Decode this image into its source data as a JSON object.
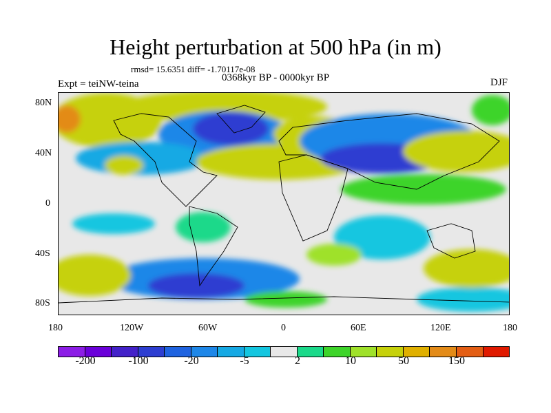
{
  "title": "Height perturbation at 500 hPa (in m)",
  "stats_line": "rmsd= 15.6351 diff= -1.70117e-08",
  "experiment": "Expt = teiNW-teina",
  "period": "0368kyr BP - 0000kyr BP",
  "season": "DJF",
  "map": {
    "projection": "cylindrical-equidistant",
    "lon_range": [
      -180,
      180
    ],
    "lat_range": [
      -90,
      90
    ],
    "x_tick_labels": [
      "180",
      "120W",
      "60W",
      "0",
      "60E",
      "120E",
      "180"
    ],
    "y_tick_labels": [
      "80N",
      "40N",
      "0",
      "40S",
      "80S"
    ],
    "field": "500 hPa geopotential height perturbation",
    "units": "m"
  },
  "colorbar": {
    "colors": [
      "#8c1de6",
      "#6a00d9",
      "#4321c9",
      "#2d3ed1",
      "#1f63e0",
      "#1e87e8",
      "#16a9e4",
      "#14c6e0",
      "#e8e8e8",
      "#1bd98a",
      "#3ed42a",
      "#9fe12a",
      "#c6d10a",
      "#e0b000",
      "#e38b18",
      "#e35e14",
      "#e01a00"
    ],
    "labels": [
      "-200",
      "-100",
      "-20",
      "-5",
      "2",
      "10",
      "50",
      "150"
    ]
  }
}
